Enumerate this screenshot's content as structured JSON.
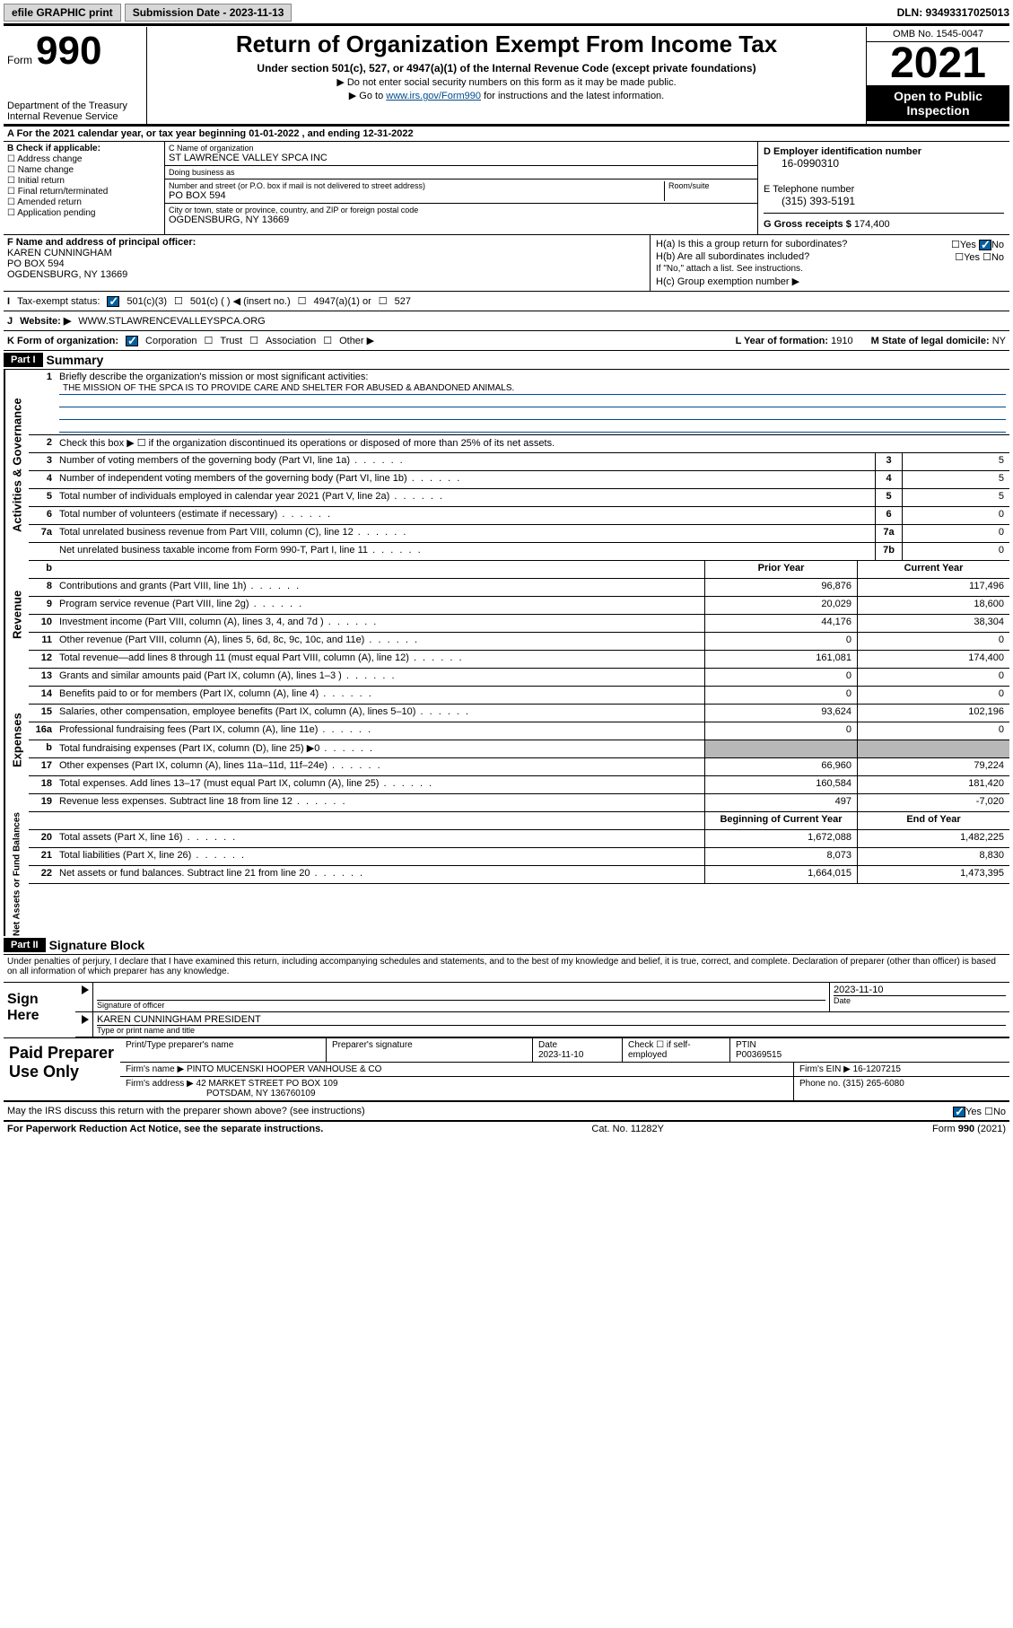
{
  "topbar": {
    "efile_label": "efile GRAPHIC print",
    "submission_label": "Submission Date - 2023-11-13",
    "dln": "DLN: 93493317025013"
  },
  "header": {
    "form_word": "Form",
    "form_number": "990",
    "dept": "Department of the Treasury",
    "irs": "Internal Revenue Service",
    "title": "Return of Organization Exempt From Income Tax",
    "subtitle": "Under section 501(c), 527, or 4947(a)(1) of the Internal Revenue Code (except private foundations)",
    "note1": "▶ Do not enter social security numbers on this form as it may be made public.",
    "note2_pre": "▶ Go to ",
    "note2_link": "www.irs.gov/Form990",
    "note2_post": " for instructions and the latest information.",
    "omb": "OMB No. 1545-0047",
    "year": "2021",
    "open": "Open to Public Inspection"
  },
  "line_a": "A For the 2021 calendar year, or tax year beginning 01-01-2022   , and ending 12-31-2022",
  "section_b": {
    "header": "B Check if applicable:",
    "items": [
      "Address change",
      "Name change",
      "Initial return",
      "Final return/terminated",
      "Amended return",
      "Application pending"
    ]
  },
  "section_c": {
    "name_label": "C Name of organization",
    "name": "ST LAWRENCE VALLEY SPCA INC",
    "dba_label": "Doing business as",
    "dba": "",
    "addr_label": "Number and street (or P.O. box if mail is not delivered to street address)",
    "room_label": "Room/suite",
    "addr": "PO BOX 594",
    "city_label": "City or town, state or province, country, and ZIP or foreign postal code",
    "city": "OGDENSBURG, NY  13669"
  },
  "section_d": {
    "ein_label": "D Employer identification number",
    "ein": "16-0990310",
    "tel_label": "E Telephone number",
    "tel": "(315) 393-5191",
    "gross_label": "G Gross receipts $",
    "gross": "174,400"
  },
  "section_f": {
    "label": "F Name and address of principal officer:",
    "name": "KAREN CUNNINGHAM",
    "addr1": "PO BOX 594",
    "addr2": "OGDENSBURG, NY  13669"
  },
  "section_h": {
    "ha": "H(a)  Is this a group return for subordinates?",
    "hb": "H(b)  Are all subordinates included?",
    "hb_note": "If \"No,\" attach a list. See instructions.",
    "hc": "H(c)  Group exemption number ▶",
    "yes": "Yes",
    "no": "No"
  },
  "line_i": {
    "label": "Tax-exempt status:",
    "opts": [
      "501(c)(3)",
      "501(c) (  ) ◀ (insert no.)",
      "4947(a)(1) or",
      "527"
    ]
  },
  "line_j": {
    "label": "Website: ▶",
    "value": "WWW.STLAWRENCEVALLEYSPCA.ORG"
  },
  "line_k": {
    "label": "K Form of organization:",
    "opts": [
      "Corporation",
      "Trust",
      "Association",
      "Other ▶"
    ],
    "l_label": "L Year of formation:",
    "l_val": "1910",
    "m_label": "M State of legal domicile:",
    "m_val": "NY"
  },
  "part1": {
    "hdr": "Part I",
    "title": "Summary",
    "line1_label": "Briefly describe the organization's mission or most significant activities:",
    "mission": "THE MISSION OF THE SPCA IS TO PROVIDE CARE AND SHELTER FOR ABUSED & ABANDONED ANIMALS.",
    "line2": "Check this box ▶ ☐  if the organization discontinued its operations or disposed of more than 25% of its net assets.",
    "governance_label": "Activities & Governance",
    "revenue_label": "Revenue",
    "expenses_label": "Expenses",
    "netassets_label": "Net Assets or Fund Balances",
    "rows_gov": [
      {
        "n": "3",
        "d": "Number of voting members of the governing body (Part VI, line 1a)",
        "box": "3",
        "v": "5"
      },
      {
        "n": "4",
        "d": "Number of independent voting members of the governing body (Part VI, line 1b)",
        "box": "4",
        "v": "5"
      },
      {
        "n": "5",
        "d": "Total number of individuals employed in calendar year 2021 (Part V, line 2a)",
        "box": "5",
        "v": "5"
      },
      {
        "n": "6",
        "d": "Total number of volunteers (estimate if necessary)",
        "box": "6",
        "v": "0"
      },
      {
        "n": "7a",
        "d": "Total unrelated business revenue from Part VIII, column (C), line 12",
        "box": "7a",
        "v": "0"
      },
      {
        "n": "",
        "d": "Net unrelated business taxable income from Form 990-T, Part I, line 11",
        "box": "7b",
        "v": "0"
      }
    ],
    "col_headers": {
      "prior": "Prior Year",
      "curr": "Current Year",
      "boy": "Beginning of Current Year",
      "eoy": "End of Year"
    },
    "rows_rev": [
      {
        "n": "8",
        "d": "Contributions and grants (Part VIII, line 1h)",
        "p": "96,876",
        "c": "117,496"
      },
      {
        "n": "9",
        "d": "Program service revenue (Part VIII, line 2g)",
        "p": "20,029",
        "c": "18,600"
      },
      {
        "n": "10",
        "d": "Investment income (Part VIII, column (A), lines 3, 4, and 7d )",
        "p": "44,176",
        "c": "38,304"
      },
      {
        "n": "11",
        "d": "Other revenue (Part VIII, column (A), lines 5, 6d, 8c, 9c, 10c, and 11e)",
        "p": "0",
        "c": "0"
      },
      {
        "n": "12",
        "d": "Total revenue—add lines 8 through 11 (must equal Part VIII, column (A), line 12)",
        "p": "161,081",
        "c": "174,400"
      }
    ],
    "rows_exp": [
      {
        "n": "13",
        "d": "Grants and similar amounts paid (Part IX, column (A), lines 1–3 )",
        "p": "0",
        "c": "0"
      },
      {
        "n": "14",
        "d": "Benefits paid to or for members (Part IX, column (A), line 4)",
        "p": "0",
        "c": "0"
      },
      {
        "n": "15",
        "d": "Salaries, other compensation, employee benefits (Part IX, column (A), lines 5–10)",
        "p": "93,624",
        "c": "102,196"
      },
      {
        "n": "16a",
        "d": "Professional fundraising fees (Part IX, column (A), line 11e)",
        "p": "0",
        "c": "0"
      },
      {
        "n": "b",
        "d": "Total fundraising expenses (Part IX, column (D), line 25) ▶0",
        "p": "",
        "c": "",
        "shaded": true
      },
      {
        "n": "17",
        "d": "Other expenses (Part IX, column (A), lines 11a–11d, 11f–24e)",
        "p": "66,960",
        "c": "79,224"
      },
      {
        "n": "18",
        "d": "Total expenses. Add lines 13–17 (must equal Part IX, column (A), line 25)",
        "p": "160,584",
        "c": "181,420"
      },
      {
        "n": "19",
        "d": "Revenue less expenses. Subtract line 18 from line 12",
        "p": "497",
        "c": "-7,020"
      }
    ],
    "rows_net": [
      {
        "n": "20",
        "d": "Total assets (Part X, line 16)",
        "p": "1,672,088",
        "c": "1,482,225"
      },
      {
        "n": "21",
        "d": "Total liabilities (Part X, line 26)",
        "p": "8,073",
        "c": "8,830"
      },
      {
        "n": "22",
        "d": "Net assets or fund balances. Subtract line 21 from line 20",
        "p": "1,664,015",
        "c": "1,473,395"
      }
    ]
  },
  "part2": {
    "hdr": "Part II",
    "title": "Signature Block",
    "decl": "Under penalties of perjury, I declare that I have examined this return, including accompanying schedules and statements, and to the best of my knowledge and belief, it is true, correct, and complete. Declaration of preparer (other than officer) is based on all information of which preparer has any knowledge.",
    "sign_here": "Sign Here",
    "sig_officer": "Signature of officer",
    "sig_date": "2023-11-10",
    "date_label": "Date",
    "officer_name": "KAREN CUNNINGHAM  PRESIDENT",
    "officer_label": "Type or print name and title"
  },
  "paid": {
    "label": "Paid Preparer Use Only",
    "h_name": "Print/Type preparer's name",
    "h_sig": "Preparer's signature",
    "h_date": "Date",
    "date": "2023-11-10",
    "check_label": "Check ☐ if self-employed",
    "ptin_label": "PTIN",
    "ptin": "P00369515",
    "firm_name_label": "Firm's name    ▶",
    "firm_name": "PINTO MUCENSKI HOOPER VANHOUSE & CO",
    "firm_ein_label": "Firm's EIN ▶",
    "firm_ein": "16-1207215",
    "firm_addr_label": "Firm's address ▶",
    "firm_addr1": "42 MARKET STREET PO BOX 109",
    "firm_addr2": "POTSDAM, NY  136760109",
    "phone_label": "Phone no.",
    "phone": "(315) 265-6080"
  },
  "discuss": {
    "q": "May the IRS discuss this return with the preparer shown above? (see instructions)",
    "yes": "Yes",
    "no": "No"
  },
  "footer": {
    "left": "For Paperwork Reduction Act Notice, see the separate instructions.",
    "mid": "Cat. No. 11282Y",
    "right": "Form 990 (2021)"
  }
}
